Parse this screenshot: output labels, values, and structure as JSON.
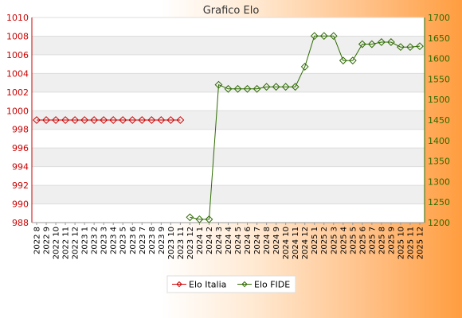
{
  "chart_data": {
    "type": "line",
    "title": "Grafico Elo",
    "categories": [
      "2022 8",
      "2022 9",
      "2022 10",
      "2022 11",
      "2022 12",
      "2023 1",
      "2023 2",
      "2023 3",
      "2023 4",
      "2023 5",
      "2023 6",
      "2023 7",
      "2023 8",
      "2023 9",
      "2023 10",
      "2023 11",
      "2023 12",
      "2024 1",
      "2024 2",
      "2024 3",
      "2024 4",
      "2024 5",
      "2024 6",
      "2024 7",
      "2024 8",
      "2024 9",
      "2024 10",
      "2024 11",
      "2024 12",
      "2025 1",
      "2025 2",
      "2025 3",
      "2025 4",
      "2025 5",
      "2025 6",
      "2025 7",
      "2025 8",
      "2025 9",
      "2025 10",
      "2025 11",
      "2025 12"
    ],
    "y_left": {
      "ticks": [
        988,
        990,
        992,
        994,
        996,
        998,
        1000,
        1002,
        1004,
        1006,
        1008,
        1010
      ],
      "ylim": [
        988,
        1010
      ],
      "color": "#cc0000"
    },
    "y_right": {
      "ticks": [
        1200,
        1250,
        1300,
        1350,
        1400,
        1450,
        1500,
        1550,
        1600,
        1650,
        1700
      ],
      "ylim": [
        1200,
        1700
      ],
      "color": "#2e6b00"
    },
    "grid": true,
    "legend_position": "bottom",
    "series": [
      {
        "name": "Elo Italia",
        "axis": "left",
        "color": "#cc0000",
        "values": [
          999,
          999,
          999,
          999,
          999,
          999,
          999,
          999,
          999,
          999,
          999,
          999,
          999,
          999,
          999,
          999,
          null,
          null,
          null,
          null,
          null,
          null,
          null,
          null,
          null,
          null,
          null,
          null,
          null,
          null,
          null,
          null,
          null,
          null,
          null,
          null,
          null,
          null,
          null,
          null,
          null
        ]
      },
      {
        "name": "Elo FIDE",
        "axis": "right",
        "color": "#2e6b00",
        "values": [
          null,
          null,
          null,
          null,
          null,
          null,
          null,
          null,
          null,
          null,
          null,
          null,
          null,
          null,
          null,
          null,
          1213,
          1208,
          1208,
          1536,
          1526,
          1526,
          1526,
          1526,
          1531,
          1531,
          1531,
          1531,
          1580,
          1655,
          1655,
          1655,
          1595,
          1595,
          1635,
          1635,
          1640,
          1640,
          1628,
          1628,
          1630
        ]
      }
    ]
  }
}
